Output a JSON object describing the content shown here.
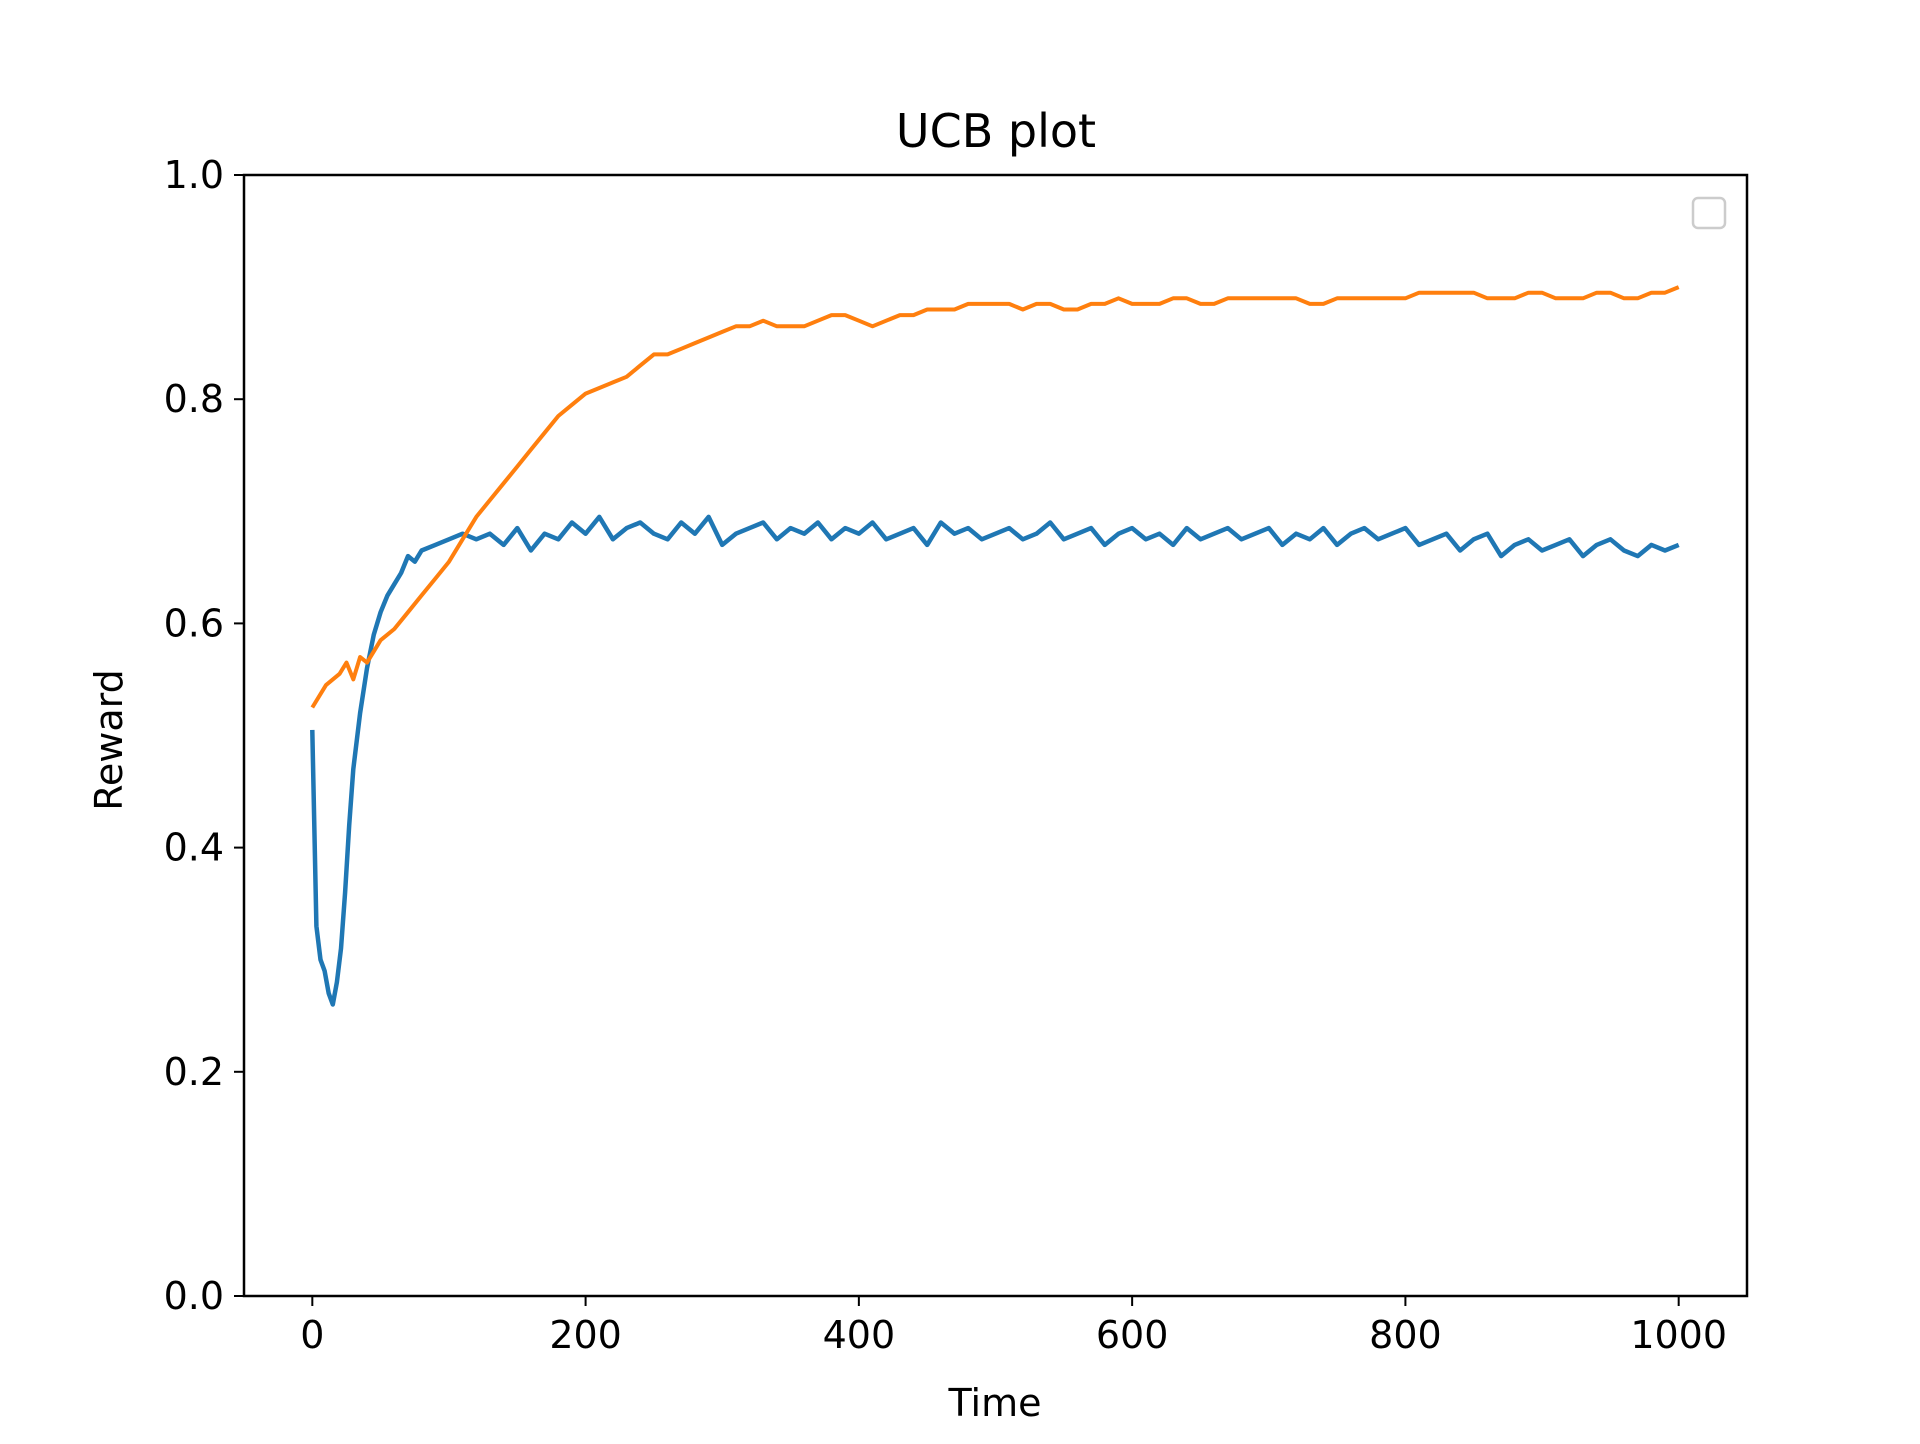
{
  "chart_data": {
    "type": "line",
    "title": "UCB plot",
    "xlabel": "Time",
    "ylabel": "Reward",
    "xlim": [
      -50,
      1050
    ],
    "ylim": [
      0.0,
      1.0
    ],
    "xticks": [
      0,
      200,
      400,
      600,
      800,
      1000
    ],
    "xtick_labels": [
      "0",
      "200",
      "400",
      "600",
      "800",
      "1000"
    ],
    "yticks": [
      0.0,
      0.2,
      0.4,
      0.6,
      0.8,
      1.0
    ],
    "ytick_labels": [
      "0.0",
      "0.2",
      "0.4",
      "0.6",
      "0.8",
      "1.0"
    ],
    "grid": false,
    "legend": {
      "placement": "top-right",
      "entries": []
    },
    "series": [
      {
        "color": "#1f77b4",
        "x": [
          0,
          3,
          6,
          9,
          12,
          15,
          18,
          21,
          24,
          27,
          30,
          35,
          40,
          45,
          50,
          55,
          60,
          65,
          70,
          75,
          80,
          90,
          100,
          110,
          120,
          130,
          140,
          150,
          160,
          170,
          180,
          190,
          200,
          210,
          220,
          230,
          240,
          250,
          260,
          270,
          280,
          290,
          300,
          310,
          320,
          330,
          340,
          350,
          360,
          370,
          380,
          390,
          400,
          410,
          420,
          430,
          440,
          450,
          460,
          470,
          480,
          490,
          500,
          510,
          520,
          530,
          540,
          550,
          560,
          570,
          580,
          590,
          600,
          610,
          620,
          630,
          640,
          650,
          660,
          670,
          680,
          690,
          700,
          710,
          720,
          730,
          740,
          750,
          760,
          770,
          780,
          790,
          800,
          810,
          820,
          830,
          840,
          850,
          860,
          870,
          880,
          890,
          900,
          910,
          920,
          930,
          940,
          950,
          960,
          970,
          980,
          990,
          1000
        ],
        "y": [
          0.505,
          0.33,
          0.3,
          0.29,
          0.27,
          0.26,
          0.28,
          0.31,
          0.36,
          0.42,
          0.47,
          0.52,
          0.56,
          0.59,
          0.61,
          0.625,
          0.635,
          0.645,
          0.66,
          0.655,
          0.665,
          0.67,
          0.675,
          0.68,
          0.675,
          0.68,
          0.67,
          0.685,
          0.665,
          0.68,
          0.675,
          0.69,
          0.68,
          0.695,
          0.675,
          0.685,
          0.69,
          0.68,
          0.675,
          0.69,
          0.68,
          0.695,
          0.67,
          0.68,
          0.685,
          0.69,
          0.675,
          0.685,
          0.68,
          0.69,
          0.675,
          0.685,
          0.68,
          0.69,
          0.675,
          0.68,
          0.685,
          0.67,
          0.69,
          0.68,
          0.685,
          0.675,
          0.68,
          0.685,
          0.675,
          0.68,
          0.69,
          0.675,
          0.68,
          0.685,
          0.67,
          0.68,
          0.685,
          0.675,
          0.68,
          0.67,
          0.685,
          0.675,
          0.68,
          0.685,
          0.675,
          0.68,
          0.685,
          0.67,
          0.68,
          0.675,
          0.685,
          0.67,
          0.68,
          0.685,
          0.675,
          0.68,
          0.685,
          0.67,
          0.675,
          0.68,
          0.665,
          0.675,
          0.68,
          0.66,
          0.67,
          0.675,
          0.665,
          0.67,
          0.675,
          0.66,
          0.67,
          0.675,
          0.665,
          0.66,
          0.67,
          0.665,
          0.67
        ]
      },
      {
        "color": "#ff7f0e",
        "x": [
          0,
          10,
          20,
          25,
          30,
          35,
          40,
          45,
          50,
          60,
          70,
          80,
          90,
          100,
          110,
          120,
          130,
          140,
          150,
          160,
          170,
          180,
          190,
          200,
          210,
          220,
          230,
          240,
          250,
          260,
          270,
          280,
          290,
          300,
          310,
          320,
          330,
          340,
          350,
          360,
          370,
          380,
          390,
          400,
          410,
          420,
          430,
          440,
          450,
          460,
          470,
          480,
          490,
          500,
          510,
          520,
          530,
          540,
          550,
          560,
          570,
          580,
          590,
          600,
          610,
          620,
          630,
          640,
          650,
          660,
          670,
          680,
          690,
          700,
          710,
          720,
          730,
          740,
          750,
          760,
          770,
          780,
          790,
          800,
          810,
          820,
          830,
          840,
          850,
          860,
          870,
          880,
          890,
          900,
          910,
          920,
          930,
          940,
          950,
          960,
          970,
          980,
          990,
          1000
        ],
        "y": [
          0.525,
          0.545,
          0.555,
          0.565,
          0.55,
          0.57,
          0.565,
          0.575,
          0.585,
          0.595,
          0.61,
          0.625,
          0.64,
          0.655,
          0.675,
          0.695,
          0.71,
          0.725,
          0.74,
          0.755,
          0.77,
          0.785,
          0.795,
          0.805,
          0.81,
          0.815,
          0.82,
          0.83,
          0.84,
          0.84,
          0.845,
          0.85,
          0.855,
          0.86,
          0.865,
          0.865,
          0.87,
          0.865,
          0.865,
          0.865,
          0.87,
          0.875,
          0.875,
          0.87,
          0.865,
          0.87,
          0.875,
          0.875,
          0.88,
          0.88,
          0.88,
          0.885,
          0.885,
          0.885,
          0.885,
          0.88,
          0.885,
          0.885,
          0.88,
          0.88,
          0.885,
          0.885,
          0.89,
          0.885,
          0.885,
          0.885,
          0.89,
          0.89,
          0.885,
          0.885,
          0.89,
          0.89,
          0.89,
          0.89,
          0.89,
          0.89,
          0.885,
          0.885,
          0.89,
          0.89,
          0.89,
          0.89,
          0.89,
          0.89,
          0.895,
          0.895,
          0.895,
          0.895,
          0.895,
          0.89,
          0.89,
          0.89,
          0.895,
          0.895,
          0.89,
          0.89,
          0.89,
          0.895,
          0.895,
          0.89,
          0.89,
          0.895,
          0.895,
          0.9
        ]
      }
    ]
  }
}
